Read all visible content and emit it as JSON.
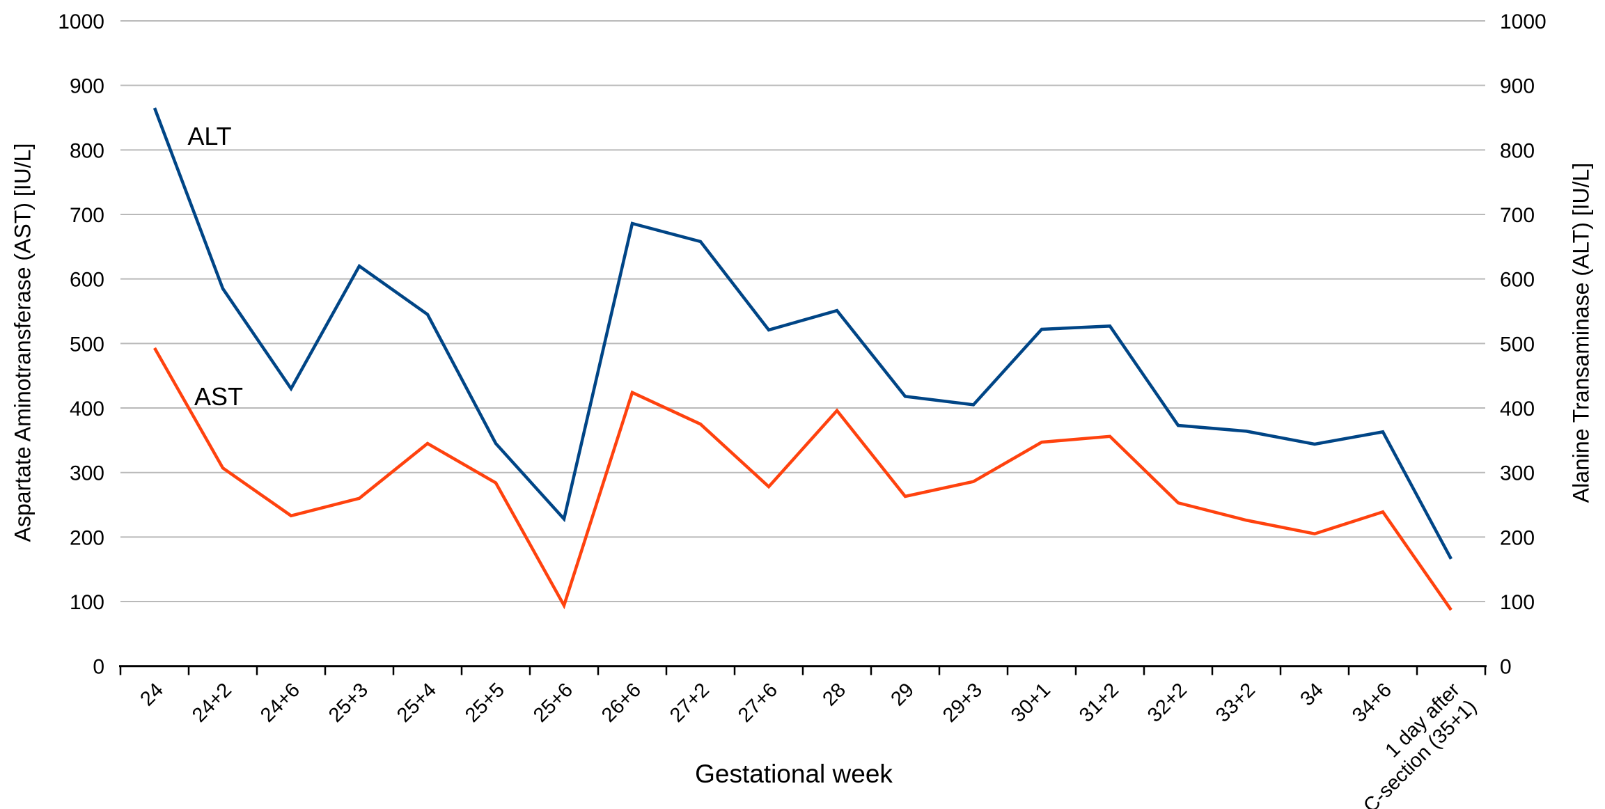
{
  "chart_data": {
    "type": "line",
    "title": "",
    "xlabel": "Gestational week",
    "ylabel_left": "Aspartate Aminotransferase (AST) [IU/L]",
    "ylabel_right": "Alanine Transaminase (ALT) [IU/L]",
    "categories": [
      "24",
      "24+2",
      "24+6",
      "25+3",
      "25+4",
      "25+5",
      "25+6",
      "26+6",
      "27+2",
      "27+6",
      "28",
      "29",
      "29+3",
      "30+1",
      "31+2",
      "32+2",
      "33+2",
      "34",
      "34+6",
      "1 day after\nC-section (35+1)"
    ],
    "series": [
      {
        "name": "ALT",
        "color": "#004586",
        "axis": "right",
        "values": [
          865,
          585,
          430,
          620,
          545,
          345,
          228,
          686,
          658,
          521,
          551,
          418,
          405,
          522,
          527,
          373,
          364,
          344,
          363,
          166
        ]
      },
      {
        "name": "AST",
        "color": "#FF420E",
        "axis": "left",
        "values": [
          493,
          307,
          233,
          260,
          345,
          284,
          94,
          424,
          375,
          278,
          396,
          263,
          286,
          347,
          356,
          253,
          226,
          205,
          239,
          87
        ]
      }
    ],
    "ylim": [
      0,
      1000
    ],
    "ytick_step": 100,
    "yticks": [
      "0",
      "100",
      "200",
      "300",
      "400",
      "500",
      "600",
      "700",
      "800",
      "900",
      "1000"
    ],
    "grid": true,
    "gridline_color": "#b9b9b9",
    "axis_color": "#000000",
    "legend": "inline-labels",
    "annotations": [
      {
        "text": "ALT",
        "x": 301,
        "y": 196
      },
      {
        "text": "AST",
        "x": 314,
        "y": 570
      }
    ]
  },
  "layout_text": {
    "x_axis_title": "Gestational week",
    "left_axis_title": "Aspartate Aminotransferase (AST) [IU/L]",
    "right_axis_title": "Alanine Transaminase (ALT) [IU/L]",
    "alt_label": "ALT",
    "ast_label": "AST"
  }
}
